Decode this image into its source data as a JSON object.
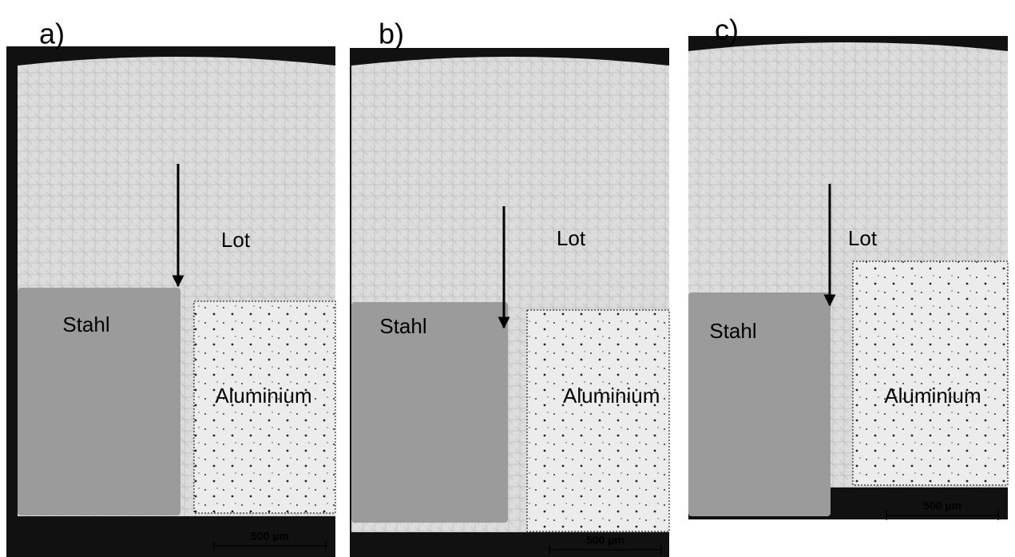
{
  "panels": [
    {
      "label": "a)",
      "lot": "Lot",
      "steel": "Stahl",
      "aluminium": "Aluminium",
      "scale_bar": "500 µm"
    },
    {
      "label": "b)",
      "lot": "Lot",
      "steel": "Stahl",
      "aluminium": "Aluminium",
      "scale_bar": "500 µm"
    },
    {
      "label": "c)",
      "lot": "Lot",
      "steel": "Stahl",
      "aluminium": "Aluminium",
      "scale_bar": "500 µm"
    }
  ]
}
